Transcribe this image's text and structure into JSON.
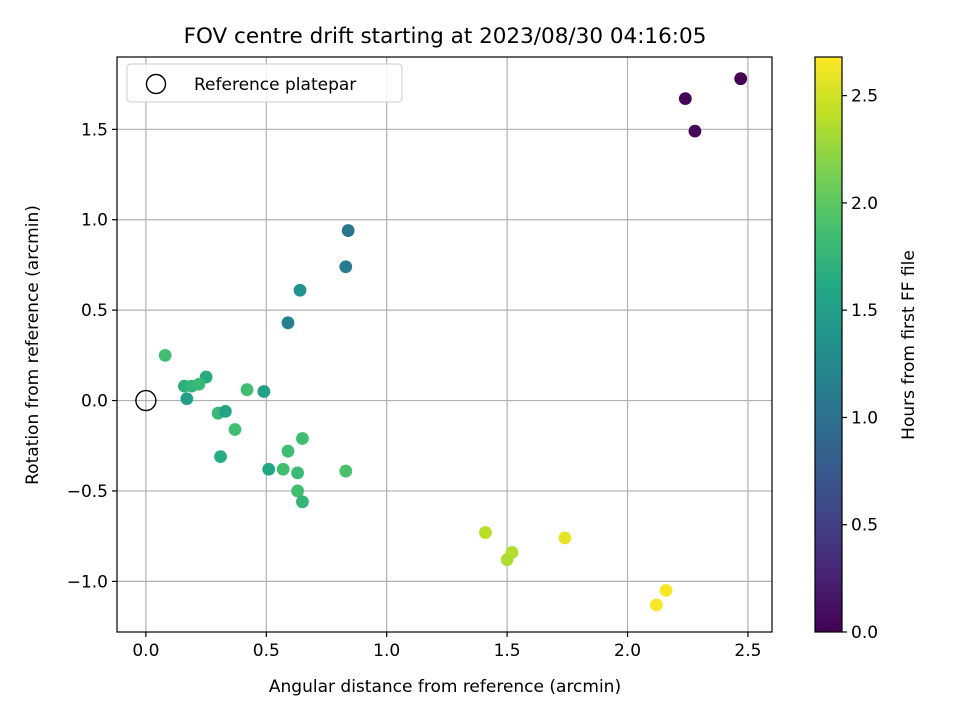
{
  "chart_data": {
    "type": "scatter",
    "title": "FOV centre drift starting at 2023/08/30 04:16:05",
    "xlabel": "Angular distance from reference (arcmin)",
    "ylabel": "Rotation from reference (arcmin)",
    "xlim": [
      -0.12,
      2.6
    ],
    "ylim": [
      -1.28,
      1.9
    ],
    "x_ticks": [
      0.0,
      0.5,
      1.0,
      1.5,
      2.0,
      2.5
    ],
    "x_tick_labels": [
      "0.0",
      "0.5",
      "1.0",
      "1.5",
      "2.0",
      "2.5"
    ],
    "y_ticks": [
      -1.0,
      -0.5,
      0.0,
      0.5,
      1.0,
      1.5
    ],
    "y_tick_labels": [
      "−1.0",
      "−0.5",
      "0.0",
      "0.5",
      "1.0",
      "1.5"
    ],
    "grid": true,
    "legend": {
      "placement": "top-left",
      "entries": [
        {
          "label": "Reference platepar",
          "marker": "open-circle"
        }
      ]
    },
    "reference_point": {
      "x": 0.0,
      "y": 0.0
    },
    "colorbar": {
      "label": "Hours from first FF file",
      "colormap": "viridis",
      "range": [
        0.0,
        2.68
      ],
      "ticks": [
        0.0,
        0.5,
        1.0,
        1.5,
        2.0,
        2.5
      ],
      "tick_labels": [
        "0.0",
        "0.5",
        "1.0",
        "1.5",
        "2.0",
        "2.5"
      ]
    },
    "points": [
      {
        "x": 2.47,
        "y": 1.78,
        "c": 0.0
      },
      {
        "x": 2.24,
        "y": 1.67,
        "c": 0.03
      },
      {
        "x": 2.28,
        "y": 1.49,
        "c": 0.06
      },
      {
        "x": 0.84,
        "y": 0.94,
        "c": 1.05
      },
      {
        "x": 0.83,
        "y": 0.74,
        "c": 1.1
      },
      {
        "x": 0.64,
        "y": 0.61,
        "c": 1.35
      },
      {
        "x": 0.59,
        "y": 0.43,
        "c": 1.15
      },
      {
        "x": 0.08,
        "y": 0.25,
        "c": 1.85
      },
      {
        "x": 0.25,
        "y": 0.13,
        "c": 1.65
      },
      {
        "x": 0.16,
        "y": 0.08,
        "c": 1.7
      },
      {
        "x": 0.19,
        "y": 0.08,
        "c": 1.75
      },
      {
        "x": 0.22,
        "y": 0.09,
        "c": 1.8
      },
      {
        "x": 0.17,
        "y": 0.01,
        "c": 1.5
      },
      {
        "x": 0.42,
        "y": 0.06,
        "c": 1.85
      },
      {
        "x": 0.49,
        "y": 0.05,
        "c": 1.5
      },
      {
        "x": 0.3,
        "y": -0.07,
        "c": 1.8
      },
      {
        "x": 0.33,
        "y": -0.06,
        "c": 1.55
      },
      {
        "x": 0.37,
        "y": -0.16,
        "c": 1.85
      },
      {
        "x": 0.31,
        "y": -0.31,
        "c": 1.65
      },
      {
        "x": 0.51,
        "y": -0.38,
        "c": 1.6
      },
      {
        "x": 0.57,
        "y": -0.38,
        "c": 1.85
      },
      {
        "x": 0.59,
        "y": -0.28,
        "c": 1.85
      },
      {
        "x": 0.65,
        "y": -0.21,
        "c": 1.85
      },
      {
        "x": 0.63,
        "y": -0.4,
        "c": 1.8
      },
      {
        "x": 0.63,
        "y": -0.5,
        "c": 1.85
      },
      {
        "x": 0.65,
        "y": -0.56,
        "c": 1.75
      },
      {
        "x": 0.83,
        "y": -0.39,
        "c": 1.9
      },
      {
        "x": 1.41,
        "y": -0.73,
        "c": 2.4
      },
      {
        "x": 1.52,
        "y": -0.84,
        "c": 2.38
      },
      {
        "x": 1.5,
        "y": -0.88,
        "c": 2.35
      },
      {
        "x": 1.74,
        "y": -0.76,
        "c": 2.58
      },
      {
        "x": 2.12,
        "y": -1.13,
        "c": 2.65
      },
      {
        "x": 2.16,
        "y": -1.05,
        "c": 2.65
      }
    ]
  }
}
